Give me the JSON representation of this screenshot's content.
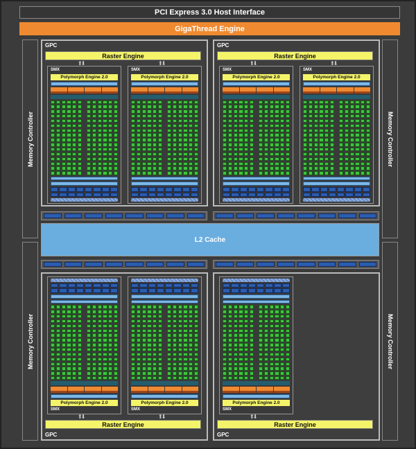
{
  "pci_label": "PCI Express 3.0 Host Interface",
  "gigathread_label": "GigaThread Engine",
  "memory_controller_label": "Memory Controller",
  "l2_label": "L2 Cache",
  "gpc_label": "GPC",
  "raster_label": "Raster Engine",
  "smx_label": "SMX",
  "polymorph_label": "Polymorph Engine 2.0",
  "gpcs": [
    {
      "position": "top-left",
      "smx_count": 2
    },
    {
      "position": "top-right",
      "smx_count": 2
    },
    {
      "position": "bottom-left",
      "smx_count": 2
    },
    {
      "position": "bottom-right",
      "smx_count": 1
    }
  ],
  "colors": {
    "giga": "#f08a30",
    "raster": "#f4f46a",
    "l2": "#6aaee0",
    "core": "#3cc63c",
    "ldst": "#2a5db0"
  }
}
